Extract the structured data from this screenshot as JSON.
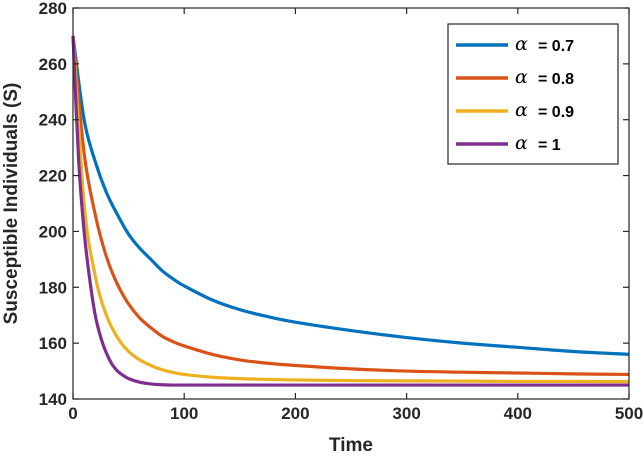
{
  "chart_data": {
    "type": "line",
    "xlabel": "Time",
    "ylabel": "Susceptible Individuals (S)",
    "xlim": [
      0,
      500
    ],
    "ylim": [
      140,
      280
    ],
    "xticks": [
      0,
      100,
      200,
      300,
      400,
      500
    ],
    "yticks": [
      140,
      160,
      180,
      200,
      220,
      240,
      260,
      280
    ],
    "grid": false,
    "legend_position": "top-right",
    "series": [
      {
        "name": "α = 0.7",
        "greek": "α",
        "value_label": "= 0.7",
        "color": "#0072BD",
        "x": [
          0,
          10,
          20,
          30,
          40,
          50,
          60,
          70,
          80,
          90,
          100,
          125,
          150,
          175,
          200,
          250,
          300,
          350,
          400,
          450,
          500
        ],
        "y": [
          270,
          240,
          225,
          214,
          206,
          199,
          194,
          190,
          186,
          183,
          180.5,
          175.5,
          172,
          169.5,
          167.5,
          164.5,
          162,
          160,
          158.5,
          157,
          156
        ]
      },
      {
        "name": "α = 0.8",
        "greek": "α",
        "value_label": "= 0.8",
        "color": "#D95319",
        "x": [
          0,
          10,
          20,
          30,
          40,
          50,
          60,
          70,
          80,
          90,
          100,
          125,
          150,
          175,
          200,
          250,
          300,
          350,
          400,
          450,
          500
        ],
        "y": [
          270,
          228,
          206,
          191,
          181,
          174,
          169,
          165.5,
          162.5,
          160.5,
          159,
          156,
          154,
          152.8,
          152,
          150.8,
          150,
          149.6,
          149.3,
          149,
          148.8
        ]
      },
      {
        "name": "α = 0.9",
        "greek": "α",
        "value_label": "= 0.9",
        "color": "#EDB120",
        "x": [
          0,
          10,
          20,
          30,
          40,
          50,
          60,
          70,
          80,
          90,
          100,
          125,
          150,
          175,
          200,
          250,
          300,
          350,
          400,
          450,
          500
        ],
        "y": [
          270,
          210,
          184,
          170,
          162,
          157,
          154,
          152,
          150.5,
          149.5,
          148.8,
          147.8,
          147.3,
          147,
          146.8,
          146.6,
          146.5,
          146.4,
          146.3,
          146.3,
          146.2
        ]
      },
      {
        "name": "α = 1",
        "greek": "α",
        "value_label": "= 1",
        "color": "#7E2F8E",
        "x": [
          0,
          5,
          10,
          15,
          20,
          25,
          30,
          35,
          40,
          45,
          50,
          60,
          70,
          80,
          90,
          100,
          125,
          150,
          200,
          300,
          400,
          500
        ],
        "y": [
          270,
          226,
          200,
          183,
          170,
          162,
          156.5,
          152.5,
          150,
          148.5,
          147.3,
          146,
          145.4,
          145.1,
          145,
          145,
          145,
          145,
          145,
          145,
          145,
          145
        ]
      }
    ]
  }
}
